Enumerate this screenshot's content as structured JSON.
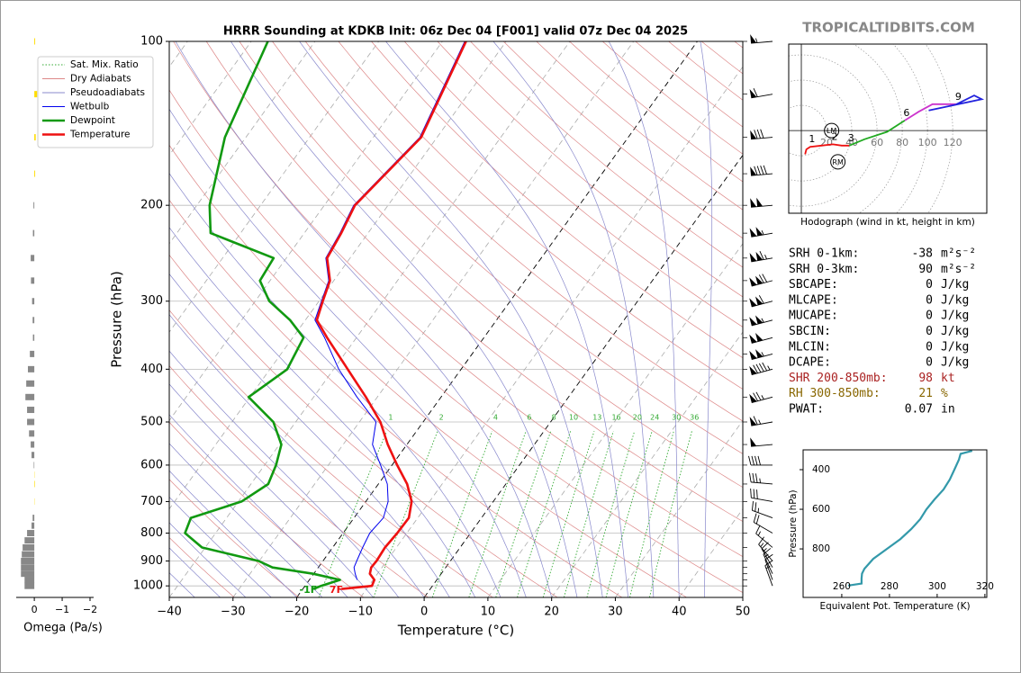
{
  "header": {
    "brand": "TROPICALTIDBITS.COM"
  },
  "chart_data": [
    {
      "type": "skewt",
      "title": "HRRR Sounding at KDKB Init: 06z Dec 04 [F001] valid 07z Dec 04 2025",
      "xlabel": "Temperature (°C)",
      "ylabel": "Pressure (hPa)",
      "xlim": [
        -40,
        50
      ],
      "ylim": [
        1050,
        100
      ],
      "log_y": true,
      "grid": true,
      "legend": "upper left",
      "xticks": [
        {
          "value": -40,
          "label": "−40"
        },
        {
          "value": -30,
          "label": "−30"
        },
        {
          "value": -20,
          "label": "−20"
        },
        {
          "value": -10,
          "label": "−10"
        },
        0,
        10,
        20,
        30,
        40,
        50
      ],
      "yticks": [
        100,
        200,
        300,
        400,
        500,
        600,
        700,
        800,
        900,
        1000
      ],
      "pressure": [
        1013,
        1000,
        975,
        950,
        925,
        900,
        850,
        800,
        750,
        700,
        650,
        600,
        550,
        500,
        450,
        400,
        350,
        325,
        300,
        275,
        250,
        225,
        200,
        150,
        100
      ],
      "series": [
        {
          "name": "Wetbulb",
          "color": "#0000ee",
          "weight": "thin",
          "values": [
            null,
            null,
            -12.5,
            -13.5,
            -14.4,
            -14.7,
            -15.3,
            -15.8,
            -15.4,
            -16.5,
            -18.6,
            -21.8,
            -25.4,
            -27.4,
            -33.2,
            -39.2,
            -45.0,
            -48.5,
            -49.6,
            -50.8,
            -53.8,
            -54.4,
            -55.4,
            -52.7,
            -56.5
          ]
        },
        {
          "name": "Dewpoint",
          "color": "#119911",
          "weight": "thick",
          "values": [
            -18.3,
            -17.5,
            -15.2,
            -20.1,
            -27.2,
            -30.1,
            -40.5,
            -44.8,
            -45.6,
            -39.5,
            -37.3,
            -38.2,
            -39.7,
            -43.5,
            -50.2,
            -47.3,
            -48.3,
            -52.4,
            -57.8,
            -61.6,
            -62.0,
            -74.7,
            -78.0,
            -83.3,
            -87.4
          ]
        },
        {
          "name": "Temperature",
          "color": "#ee1111",
          "weight": "thick",
          "values": [
            -13.9,
            -9.5,
            -9.8,
            -11.2,
            -11.7,
            -11.6,
            -11.8,
            -11.5,
            -11.4,
            -12.8,
            -15.5,
            -19.2,
            -23.0,
            -26.7,
            -31.8,
            -37.8,
            -44.6,
            -48.2,
            -49.4,
            -50.6,
            -53.6,
            -54.2,
            -55.2,
            -52.5,
            -56.3
          ]
        }
      ],
      "reference_lines": [
        {
          "name": "Sat. Mix. Ratio",
          "color": "#33aa33",
          "style": "dotted"
        },
        {
          "name": "Dry Adiabats",
          "color": "#dd8888",
          "style": "solid"
        },
        {
          "name": "Pseudoadiabats",
          "color": "#8888cc",
          "style": "solid"
        }
      ],
      "mixing_ratios": [
        1,
        2,
        4,
        6,
        8,
        10,
        13,
        16,
        20,
        24,
        30,
        36
      ],
      "highlight_isotherms": [
        -20,
        0
      ],
      "surface_labels": [
        "-1F",
        "7F"
      ],
      "wind": {
        "pressure": [
          100,
          125,
          150,
          175,
          200,
          225,
          250,
          275,
          300,
          325,
          350,
          375,
          400,
          450,
          500,
          550,
          600,
          650,
          700,
          750,
          800,
          850,
          900,
          925,
          950,
          975,
          1000
        ],
        "speed": [
          55,
          60,
          80,
          90,
          100,
          105,
          115,
          120,
          110,
          105,
          100,
          105,
          95,
          75,
          65,
          50,
          40,
          35,
          30,
          25,
          20,
          15,
          15,
          15,
          15,
          10,
          15
        ],
        "direction": [
          265,
          260,
          265,
          265,
          265,
          260,
          260,
          255,
          255,
          255,
          255,
          255,
          255,
          255,
          260,
          265,
          270,
          275,
          280,
          290,
          300,
          310,
          320,
          330,
          335,
          340,
          340
        ]
      }
    },
    {
      "type": "bar",
      "orientation": "horizontal",
      "xlabel": "Omega (Pa/s)",
      "xlim": [
        0.65,
        -2
      ],
      "xticks": [
        0,
        {
          "value": -1,
          "label": "−1"
        },
        {
          "value": -2,
          "label": "−2"
        }
      ],
      "positive_color": "#888888",
      "negative_color": "#ffdd00",
      "pressure": [
        100,
        125,
        150,
        175,
        200,
        225,
        250,
        275,
        300,
        325,
        350,
        375,
        400,
        425,
        450,
        475,
        500,
        525,
        550,
        575,
        600,
        625,
        650,
        700,
        750,
        775,
        800,
        825,
        850,
        875,
        900,
        925,
        950,
        975,
        1000
      ],
      "values": [
        -0.03,
        -0.1,
        -0.05,
        -0.03,
        0.03,
        0.05,
        0.13,
        0.12,
        0.08,
        0.06,
        0.05,
        0.16,
        0.23,
        0.29,
        0.32,
        0.26,
        0.26,
        0.19,
        0.13,
        0.1,
        0.02,
        -0.01,
        -0.02,
        -0.01,
        0.06,
        0.1,
        0.26,
        0.35,
        0.42,
        0.45,
        0.48,
        0.48,
        0.48,
        0.35,
        0.35
      ]
    },
    {
      "type": "hodograph",
      "caption": "Hodograph (wind in kt, height in km)",
      "xlim": [
        -10,
        147
      ],
      "ylim": [
        -66,
        69
      ],
      "xticks": [
        20,
        40,
        60,
        80,
        100,
        120
      ],
      "heights": [
        0,
        0.5,
        1,
        1.5,
        2,
        2.5,
        3,
        4,
        5,
        6,
        7,
        8,
        9,
        10,
        11,
        12
      ],
      "u": [
        3,
        4,
        7,
        16,
        25,
        32,
        38,
        50,
        68,
        82,
        93,
        104,
        123,
        137,
        143,
        101
      ],
      "v": [
        -19,
        -15,
        -13,
        -12,
        -11,
        -12,
        -12,
        -7,
        -1,
        8,
        15,
        21,
        21,
        28,
        25,
        16
      ],
      "labeled_heights": [
        1,
        2,
        3,
        6,
        9
      ],
      "segments": [
        {
          "from": 0,
          "to": 3,
          "color": "#ee1111"
        },
        {
          "from": 3,
          "to": 6,
          "color": "#22aa22"
        },
        {
          "from": 6,
          "to": 9,
          "color": "#cc33cc"
        },
        {
          "from": 9,
          "to": 12,
          "color": "#2222dd"
        }
      ],
      "storm_motion": [
        {
          "label": "LM",
          "u": 24,
          "v": 0
        },
        {
          "label": "RM",
          "u": 29,
          "v": -25
        }
      ]
    },
    {
      "type": "line",
      "xlabel": "Equivalent Pot. Temperature (K)",
      "ylabel": "Pressure (hPa)",
      "xlim": [
        243.8,
        320.8
      ],
      "ylim": [
        1045,
        300
      ],
      "xticks": [
        260,
        280,
        300,
        320
      ],
      "yticks": [
        400,
        600,
        800
      ],
      "color": "#3399aa",
      "pressure": [
        985,
        975,
        950,
        925,
        900,
        850,
        800,
        750,
        700,
        650,
        600,
        550,
        500,
        450,
        400,
        350,
        320,
        305
      ],
      "values": [
        262.7,
        268.3,
        268.3,
        268.5,
        269.5,
        273.2,
        278.9,
        284.6,
        289.1,
        292.9,
        295.5,
        298.9,
        302.7,
        305.3,
        307.2,
        309.1,
        309.8,
        314.7
      ]
    }
  ],
  "stats": {
    "rows": [
      {
        "label": "SRH 0-1km:",
        "value": -38,
        "unit": "m²s⁻²",
        "color": "#000000"
      },
      {
        "label": "SRH 0-3km:",
        "value": 90,
        "unit": "m²s⁻²",
        "color": "#000000"
      },
      {
        "label": "SBCAPE:",
        "value": 0,
        "unit": "J/kg",
        "color": "#000000"
      },
      {
        "label": "MLCAPE:",
        "value": 0,
        "unit": "J/kg",
        "color": "#000000"
      },
      {
        "label": "MUCAPE:",
        "value": 0,
        "unit": "J/kg",
        "color": "#000000"
      },
      {
        "label": "SBCIN:",
        "value": 0,
        "unit": "J/kg",
        "color": "#000000"
      },
      {
        "label": "MLCIN:",
        "value": 0,
        "unit": "J/kg",
        "color": "#000000"
      },
      {
        "label": "DCAPE:",
        "value": 0,
        "unit": "J/kg",
        "color": "#000000"
      },
      {
        "label": "SHR 200-850mb:",
        "value": 98,
        "unit": "kt",
        "color": "#aa2222"
      },
      {
        "label": "RH 300-850mb:",
        "value": 21,
        "unit": "%",
        "color": "#886600"
      },
      {
        "label": "PWAT:",
        "value": 0.07,
        "unit": "in",
        "color": "#000000"
      }
    ]
  }
}
